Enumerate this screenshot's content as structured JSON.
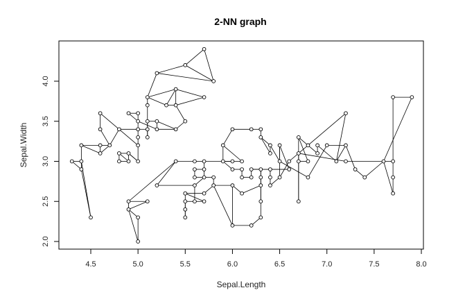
{
  "chart_data": {
    "type": "scatter",
    "title": "2-NN graph",
    "xlabel": "Sepal.Length",
    "ylabel": "Sepal.Width",
    "xlim": [
      4.3,
      7.9
    ],
    "ylim": [
      2.0,
      4.4
    ],
    "x_ticks": [
      "4.5",
      "5.0",
      "5.5",
      "6.0",
      "6.5",
      "7.0",
      "7.5",
      "8.0"
    ],
    "y_ticks": [
      "2.0",
      "2.5",
      "3.0",
      "3.5",
      "4.0"
    ],
    "grid": false,
    "points": [
      [
        4.3,
        3.0
      ],
      [
        4.4,
        2.9
      ],
      [
        4.4,
        3.0
      ],
      [
        4.4,
        3.2
      ],
      [
        4.5,
        2.3
      ],
      [
        4.6,
        3.1
      ],
      [
        4.6,
        3.2
      ],
      [
        4.6,
        3.4
      ],
      [
        4.6,
        3.6
      ],
      [
        4.7,
        3.2
      ],
      [
        4.8,
        3.0
      ],
      [
        4.8,
        3.1
      ],
      [
        4.8,
        3.4
      ],
      [
        4.9,
        3.0
      ],
      [
        4.9,
        3.1
      ],
      [
        4.9,
        3.6
      ],
      [
        4.9,
        2.4
      ],
      [
        4.9,
        2.5
      ],
      [
        5.0,
        3.0
      ],
      [
        5.0,
        3.2
      ],
      [
        5.0,
        3.3
      ],
      [
        5.0,
        3.4
      ],
      [
        5.0,
        3.5
      ],
      [
        5.0,
        3.6
      ],
      [
        5.0,
        2.0
      ],
      [
        5.0,
        2.3
      ],
      [
        5.1,
        3.3
      ],
      [
        5.1,
        3.4
      ],
      [
        5.1,
        3.5
      ],
      [
        5.1,
        3.7
      ],
      [
        5.1,
        3.8
      ],
      [
        5.1,
        2.5
      ],
      [
        5.2,
        3.4
      ],
      [
        5.2,
        3.5
      ],
      [
        5.2,
        4.1
      ],
      [
        5.2,
        2.7
      ],
      [
        5.3,
        3.7
      ],
      [
        5.4,
        3.4
      ],
      [
        5.4,
        3.7
      ],
      [
        5.4,
        3.9
      ],
      [
        5.4,
        3.0
      ],
      [
        5.5,
        3.5
      ],
      [
        5.5,
        4.2
      ],
      [
        5.5,
        2.3
      ],
      [
        5.5,
        2.4
      ],
      [
        5.5,
        2.5
      ],
      [
        5.5,
        2.6
      ],
      [
        5.6,
        2.5
      ],
      [
        5.6,
        2.7
      ],
      [
        5.6,
        2.8
      ],
      [
        5.6,
        2.9
      ],
      [
        5.6,
        3.0
      ],
      [
        5.7,
        3.8
      ],
      [
        5.7,
        4.4
      ],
      [
        5.7,
        2.5
      ],
      [
        5.7,
        2.6
      ],
      [
        5.7,
        2.8
      ],
      [
        5.7,
        2.9
      ],
      [
        5.7,
        3.0
      ],
      [
        5.8,
        4.0
      ],
      [
        5.8,
        2.7
      ],
      [
        5.8,
        2.8
      ],
      [
        5.9,
        3.0
      ],
      [
        5.9,
        3.2
      ],
      [
        6.0,
        3.4
      ],
      [
        6.0,
        2.2
      ],
      [
        6.0,
        2.7
      ],
      [
        6.0,
        2.9
      ],
      [
        6.0,
        3.0
      ],
      [
        6.1,
        2.8
      ],
      [
        6.1,
        2.9
      ],
      [
        6.1,
        3.0
      ],
      [
        6.1,
        2.6
      ],
      [
        6.2,
        2.2
      ],
      [
        6.2,
        2.8
      ],
      [
        6.2,
        2.9
      ],
      [
        6.2,
        3.4
      ],
      [
        6.3,
        2.3
      ],
      [
        6.3,
        2.5
      ],
      [
        6.3,
        2.7
      ],
      [
        6.3,
        2.8
      ],
      [
        6.3,
        2.9
      ],
      [
        6.3,
        3.3
      ],
      [
        6.3,
        3.4
      ],
      [
        6.4,
        2.7
      ],
      [
        6.4,
        2.8
      ],
      [
        6.4,
        2.9
      ],
      [
        6.4,
        3.1
      ],
      [
        6.4,
        3.2
      ],
      [
        6.5,
        2.8
      ],
      [
        6.5,
        3.0
      ],
      [
        6.5,
        3.2
      ],
      [
        6.6,
        2.9
      ],
      [
        6.6,
        3.0
      ],
      [
        6.7,
        2.5
      ],
      [
        6.7,
        3.0
      ],
      [
        6.7,
        3.1
      ],
      [
        6.7,
        3.3
      ],
      [
        6.8,
        2.8
      ],
      [
        6.8,
        3.0
      ],
      [
        6.8,
        3.2
      ],
      [
        6.9,
        3.1
      ],
      [
        6.9,
        3.2
      ],
      [
        7.0,
        3.2
      ],
      [
        7.1,
        3.0
      ],
      [
        7.2,
        3.0
      ],
      [
        7.2,
        3.2
      ],
      [
        7.2,
        3.6
      ],
      [
        7.3,
        2.9
      ],
      [
        7.4,
        2.8
      ],
      [
        7.6,
        3.0
      ],
      [
        7.7,
        2.6
      ],
      [
        7.7,
        2.8
      ],
      [
        7.7,
        3.0
      ],
      [
        7.7,
        3.8
      ],
      [
        7.9,
        3.8
      ]
    ],
    "edges": [
      [
        0,
        2
      ],
      [
        0,
        1
      ],
      [
        1,
        2
      ],
      [
        2,
        3
      ],
      [
        1,
        4
      ],
      [
        2,
        4
      ],
      [
        3,
        6
      ],
      [
        3,
        5
      ],
      [
        5,
        6
      ],
      [
        6,
        9
      ],
      [
        5,
        9
      ],
      [
        7,
        8
      ],
      [
        7,
        9
      ],
      [
        8,
        12
      ],
      [
        9,
        12
      ],
      [
        10,
        11
      ],
      [
        11,
        14
      ],
      [
        10,
        13
      ],
      [
        13,
        14
      ],
      [
        14,
        18
      ],
      [
        11,
        13
      ],
      [
        15,
        23
      ],
      [
        15,
        22
      ],
      [
        22,
        23
      ],
      [
        21,
        22
      ],
      [
        21,
        20
      ],
      [
        20,
        19
      ],
      [
        19,
        18
      ],
      [
        18,
        14
      ],
      [
        12,
        21
      ],
      [
        12,
        19
      ],
      [
        21,
        27
      ],
      [
        26,
        27
      ],
      [
        26,
        28
      ],
      [
        27,
        28
      ],
      [
        28,
        29
      ],
      [
        29,
        30
      ],
      [
        30,
        36
      ],
      [
        30,
        39
      ],
      [
        36,
        39
      ],
      [
        36,
        38
      ],
      [
        38,
        39
      ],
      [
        39,
        52
      ],
      [
        52,
        38
      ],
      [
        34,
        42
      ],
      [
        42,
        59
      ],
      [
        53,
        59
      ],
      [
        42,
        53
      ],
      [
        34,
        59
      ],
      [
        30,
        34
      ],
      [
        22,
        32
      ],
      [
        32,
        33
      ],
      [
        33,
        37
      ],
      [
        37,
        41
      ],
      [
        41,
        38
      ],
      [
        32,
        37
      ],
      [
        28,
        33
      ],
      [
        16,
        17
      ],
      [
        16,
        25
      ],
      [
        25,
        24
      ],
      [
        24,
        16
      ],
      [
        31,
        17
      ],
      [
        31,
        16
      ],
      [
        17,
        40
      ],
      [
        40,
        35
      ],
      [
        35,
        48
      ],
      [
        40,
        51
      ],
      [
        51,
        58
      ],
      [
        58,
        57
      ],
      [
        57,
        50
      ],
      [
        50,
        49
      ],
      [
        49,
        56
      ],
      [
        56,
        48
      ],
      [
        48,
        47
      ],
      [
        47,
        54
      ],
      [
        54,
        46
      ],
      [
        46,
        45
      ],
      [
        45,
        44
      ],
      [
        44,
        43
      ],
      [
        43,
        45
      ],
      [
        45,
        47
      ],
      [
        46,
        55
      ],
      [
        55,
        60
      ],
      [
        60,
        61
      ],
      [
        61,
        56
      ],
      [
        56,
        57
      ],
      [
        58,
        68
      ],
      [
        68,
        62
      ],
      [
        62,
        63
      ],
      [
        63,
        71
      ],
      [
        71,
        68
      ],
      [
        62,
        67
      ],
      [
        67,
        70
      ],
      [
        70,
        69
      ],
      [
        69,
        74
      ],
      [
        74,
        75
      ],
      [
        60,
        65
      ],
      [
        65,
        66
      ],
      [
        66,
        60
      ],
      [
        65,
        73
      ],
      [
        73,
        77
      ],
      [
        77,
        78
      ],
      [
        78,
        79
      ],
      [
        79,
        80
      ],
      [
        80,
        81
      ],
      [
        81,
        75
      ],
      [
        75,
        86
      ],
      [
        86,
        92
      ],
      [
        92,
        91
      ],
      [
        72,
        66
      ],
      [
        72,
        79
      ],
      [
        64,
        63
      ],
      [
        64,
        76
      ],
      [
        76,
        83
      ],
      [
        83,
        82
      ],
      [
        82,
        87
      ],
      [
        87,
        88
      ],
      [
        88,
        90
      ],
      [
        90,
        91
      ],
      [
        84,
        85
      ],
      [
        85,
        86
      ],
      [
        84,
        89
      ],
      [
        89,
        93
      ],
      [
        93,
        96
      ],
      [
        96,
        95
      ],
      [
        95,
        99
      ],
      [
        99,
        97
      ],
      [
        97,
        100
      ],
      [
        100,
        101
      ],
      [
        101,
        102
      ],
      [
        102,
        104
      ],
      [
        104,
        106
      ],
      [
        106,
        103
      ],
      [
        103,
        98
      ],
      [
        98,
        90
      ],
      [
        95,
        94
      ],
      [
        94,
        97
      ],
      [
        104,
        107
      ],
      [
        107,
        96
      ],
      [
        106,
        108
      ],
      [
        108,
        109
      ],
      [
        109,
        110
      ],
      [
        110,
        113
      ],
      [
        113,
        114
      ],
      [
        114,
        115
      ],
      [
        115,
        110
      ],
      [
        110,
        111
      ],
      [
        111,
        112
      ],
      [
        112,
        113
      ],
      [
        96,
        105
      ],
      [
        105,
        110
      ],
      [
        81,
        78
      ],
      [
        88,
        82
      ],
      [
        91,
        89
      ]
    ]
  }
}
